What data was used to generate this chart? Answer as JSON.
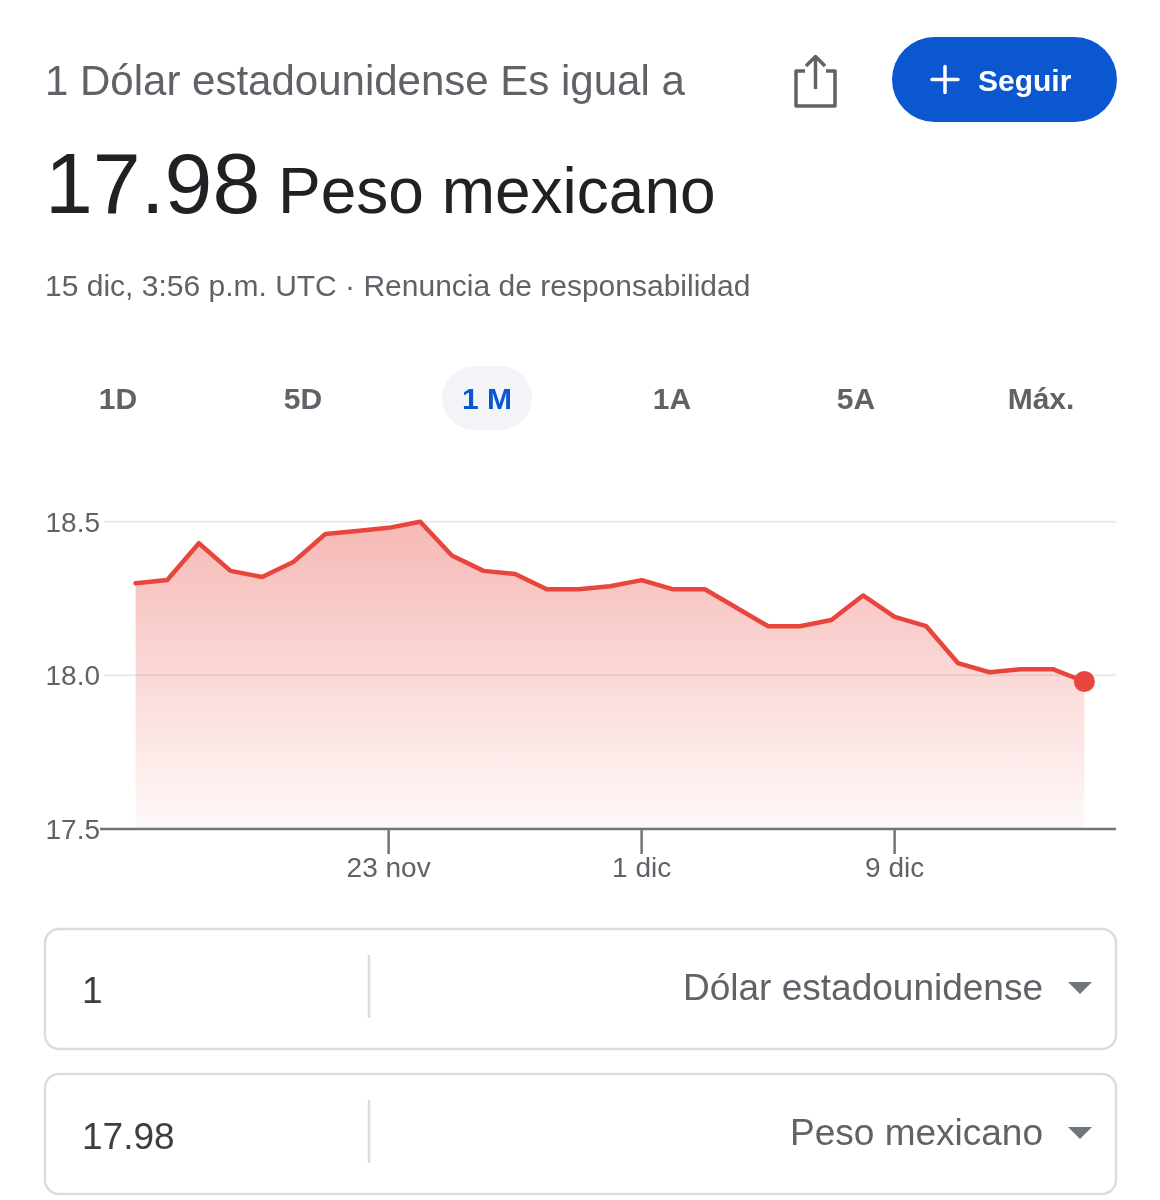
{
  "chart_data": {
    "type": "area",
    "title": "1 Dólar estadounidense Es igual a",
    "subtitle": "17.98 Peso mexicano",
    "annotations": [
      "15 dic, 3:56 p.m. UTC · Renuncia de responsabilidad",
      "Seguir",
      "1D",
      "5D",
      "1 M",
      "1A",
      "5A",
      "Máx.",
      "1",
      "Dólar estadounidense",
      "17.98",
      "Peso mexicano"
    ],
    "x": [
      "--11-15",
      "--11-16",
      "--11-17",
      "--11-18",
      "--11-19",
      "--11-20",
      "--11-21",
      "--11-22",
      "--11-23",
      "--11-24",
      "--11-25",
      "--11-26",
      "--11-27",
      "--11-28",
      "--11-29",
      "--11-30",
      "--12-01",
      "--12-02",
      "--12-03",
      "--12-04",
      "--12-05",
      "--12-06",
      "--12-07",
      "--12-08",
      "--12-09",
      "--12-10",
      "--12-11",
      "--12-12",
      "--12-13",
      "--12-14",
      "--12-15"
    ],
    "series": [
      {
        "color": "#e8453c",
        "values": [
          18.3,
          18.31,
          18.43,
          18.34,
          18.32,
          18.37,
          18.46,
          18.47,
          18.48,
          18.5,
          18.39,
          18.34,
          18.33,
          18.28,
          18.28,
          18.29,
          18.31,
          18.28,
          18.28,
          18.22,
          18.16,
          18.16,
          18.18,
          18.26,
          18.19,
          18.16,
          18.04,
          18.01,
          18.02,
          18.02,
          17.98
        ]
      },
      {
        "type": "scatter",
        "color": "#e8453c",
        "x": [
          "--12-15"
        ],
        "values": [
          17.98
        ]
      }
    ],
    "xlim": [
      "--11-14",
      "--12-16"
    ],
    "xticks": [
      {
        "value": "--11-23",
        "label": "23 nov"
      },
      {
        "value": "--12-01",
        "label": "1 dic"
      },
      {
        "value": "--12-09",
        "label": "9 dic"
      }
    ],
    "ylim": [
      17.5,
      18.5
    ],
    "yticks": [
      17.5,
      {
        "value": 18,
        "label": "18.0"
      },
      18.5
    ],
    "grid": "y"
  }
}
